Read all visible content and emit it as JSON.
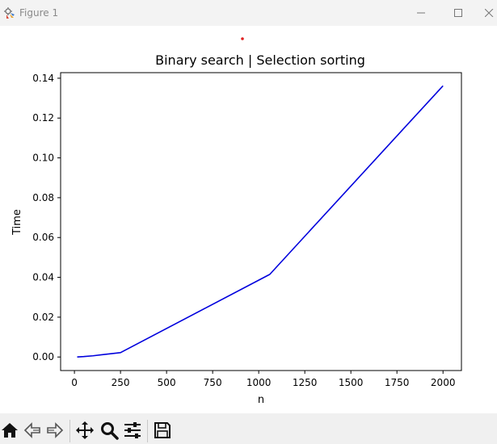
{
  "window": {
    "title": "Figure 1"
  },
  "toolbar": {
    "buttons": [
      {
        "name": "home-icon"
      },
      {
        "name": "back-arrow-icon"
      },
      {
        "name": "forward-arrow-icon"
      },
      {
        "name": "pan-move-icon"
      },
      {
        "name": "zoom-magnifier-icon"
      },
      {
        "name": "configure-subplots-icon"
      },
      {
        "name": "save-floppy-icon"
      }
    ]
  },
  "chart_data": {
    "type": "line",
    "title": "Binary search | Selection sorting",
    "xlabel": "n",
    "ylabel": "Time",
    "xlim": [
      -75,
      2100
    ],
    "ylim": [
      -0.0068,
      0.1428
    ],
    "xticks": [
      0,
      250,
      500,
      750,
      1000,
      1250,
      1500,
      1750,
      2000
    ],
    "yticks": [
      0.0,
      0.02,
      0.04,
      0.06,
      0.08,
      0.1,
      0.12,
      0.14
    ],
    "ytick_labels": [
      "0.00",
      "0.02",
      "0.04",
      "0.06",
      "0.08",
      "0.10",
      "0.12",
      "0.14"
    ],
    "grid": false,
    "series": [
      {
        "color": "#0000dd",
        "x": [
          15,
          50,
          100,
          250,
          1060,
          2000
        ],
        "y": [
          0.0,
          0.0002,
          0.0006,
          0.0022,
          0.0415,
          0.1362
        ]
      }
    ]
  }
}
